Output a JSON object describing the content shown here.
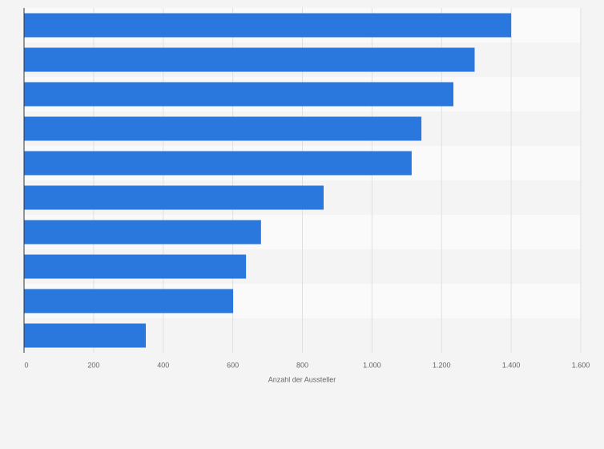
{
  "chart_data": {
    "type": "bar",
    "orientation": "horizontal",
    "xlabel": "Anzahl der Aussteller",
    "categories": [
      null,
      null,
      null,
      null,
      null,
      null,
      null,
      null,
      null,
      null
    ],
    "values": [
      1400,
      1295,
      1234,
      1142,
      1114,
      861,
      681,
      638,
      601,
      350
    ],
    "color": "#2a78de",
    "xlim": [
      0,
      1600
    ],
    "xticks": [
      0,
      200,
      400,
      600,
      800,
      {
        "value": 1000,
        "label": "1.000"
      },
      {
        "value": 1200,
        "label": "1.200"
      },
      {
        "value": 1400,
        "label": "1.400"
      },
      {
        "value": 1600,
        "label": "1.600"
      }
    ],
    "grid": true
  }
}
